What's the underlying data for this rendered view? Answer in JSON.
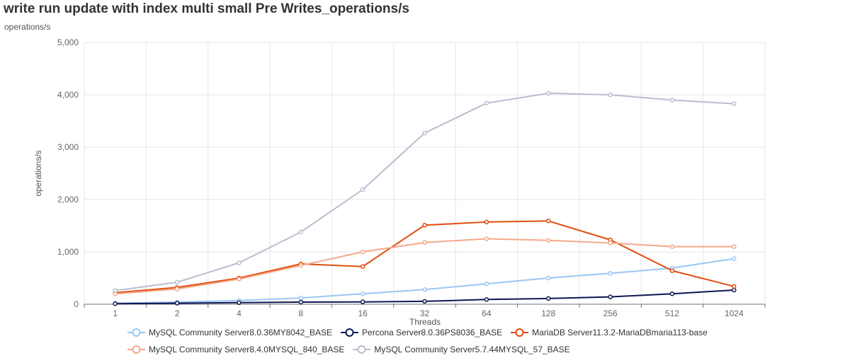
{
  "chart_data": {
    "type": "line",
    "title": "write run update with index multi small Pre Writes_operations/s",
    "subtitle": "operations/s",
    "xlabel": "Threads",
    "ylabel": "operations/s",
    "categories": [
      "1",
      "2",
      "4",
      "8",
      "16",
      "32",
      "64",
      "128",
      "256",
      "512",
      "1024"
    ],
    "yticks": [
      "0",
      "1,000",
      "2,000",
      "3,000",
      "4,000",
      "5,000"
    ],
    "ylim": [
      0,
      5000
    ],
    "grid": true,
    "legend_position": "bottom",
    "series": [
      {
        "name": "MySQL Community Server8.0.36MY8042_BASE",
        "color": "#9ac7f5",
        "values": [
          20,
          40,
          70,
          120,
          200,
          280,
          390,
          500,
          590,
          690,
          870
        ]
      },
      {
        "name": "Percona Server8.0.36PS8036_BASE",
        "color": "#0f1752",
        "values": [
          10,
          20,
          30,
          40,
          45,
          55,
          90,
          110,
          140,
          200,
          270
        ]
      },
      {
        "name": "MariaDB Server11.3.2-MariaDBmaria113-base",
        "color": "#e04d0e",
        "values": [
          220,
          320,
          500,
          770,
          720,
          1510,
          1570,
          1590,
          1230,
          640,
          340
        ]
      },
      {
        "name": "MySQL Community Server8.4.0MYSQL_840_BASE",
        "color": "#f4a98a",
        "values": [
          200,
          290,
          480,
          740,
          1000,
          1180,
          1250,
          1220,
          1170,
          1100,
          1100
        ]
      },
      {
        "name": "MySQL Community Server5.7.44MYSQL_57_BASE",
        "color": "#babdcf",
        "values": [
          260,
          420,
          790,
          1380,
          2190,
          3270,
          3840,
          4030,
          4000,
          3900,
          3830
        ]
      }
    ]
  }
}
